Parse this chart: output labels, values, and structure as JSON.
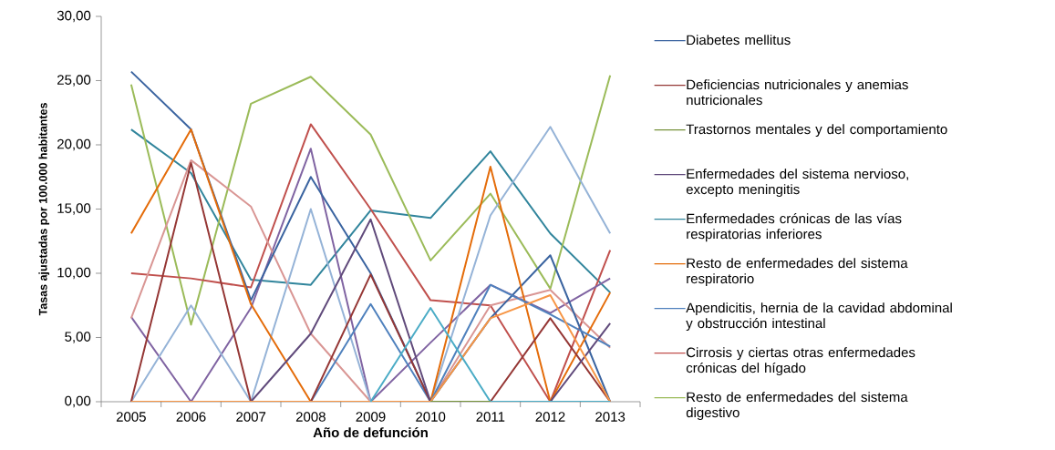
{
  "chart_data": {
    "type": "line",
    "xlabel": "Año de defunción",
    "ylabel": "Tasas ajustadas por 100.000 habitantes",
    "categories": [
      "2005",
      "2006",
      "2007",
      "2008",
      "2009",
      "2010",
      "2011",
      "2012",
      "2013"
    ],
    "ylim": [
      0,
      30
    ],
    "yticks": [
      {
        "value": 0,
        "label": "0,00"
      },
      {
        "value": 5,
        "label": "5,00"
      },
      {
        "value": 10,
        "label": "10,00"
      },
      {
        "value": 15,
        "label": "15,00"
      },
      {
        "value": 20,
        "label": "20,00"
      },
      {
        "value": 25,
        "label": "25,00"
      },
      {
        "value": 30,
        "label": "30,00"
      }
    ],
    "legend": "right",
    "grid": false,
    "series": [
      {
        "color": "#8064a2",
        "values": [
          6.6,
          0,
          7.3,
          19.7,
          0,
          4.6,
          9.1,
          6.9,
          9.6
        ]
      },
      {
        "color": "#4bacc6",
        "values": [
          null,
          null,
          null,
          null,
          0,
          7.3,
          0,
          0,
          0
        ]
      },
      {
        "color": "#f79646",
        "values": [
          0,
          0,
          0,
          0,
          0,
          0,
          6.5,
          8.3,
          0
        ]
      },
      {
        "color": "#95b3d7",
        "values": [
          0,
          7.5,
          0,
          15.0,
          0,
          0,
          14.5,
          21.4,
          13.1
        ]
      },
      {
        "color": "#d99694",
        "values": [
          6.5,
          18.8,
          15.2,
          5.3,
          0,
          0,
          7.5,
          8.7,
          4.2
        ]
      },
      {
        "name": "Diabetes mellitus",
        "color": "#3b64a0",
        "values": [
          25.7,
          21.2,
          7.9,
          17.5,
          10.0,
          0,
          6.5,
          11.4,
          0
        ]
      },
      {
        "name": "Deficiencias nutricionales y anemias nutricionales",
        "color": "#953735",
        "values": [
          0,
          18.6,
          0,
          0,
          9.9,
          0,
          0,
          6.5,
          0
        ]
      },
      {
        "name": "Trastornos mentales y del comportamiento",
        "color": "#77933c",
        "values": [
          null,
          null,
          null,
          null,
          null,
          0,
          0,
          null,
          null
        ]
      },
      {
        "name": "Enfermedades del sistema nervioso, excepto meningitis",
        "color": "#604a7b",
        "values": [
          0,
          0,
          0,
          5.3,
          14.2,
          0,
          0,
          0,
          6.1
        ]
      },
      {
        "name": "Enfermedades crónicas de las vías respiratorias inferiores",
        "color": "#31859c",
        "values": [
          21.2,
          17.8,
          9.5,
          9.1,
          14.9,
          14.3,
          19.5,
          13.1,
          8.5
        ]
      },
      {
        "name": "Resto de enfermedades del sistema respiratorio",
        "color": "#e46c0a",
        "values": [
          13.1,
          21.2,
          7.6,
          0,
          0,
          0,
          18.3,
          0,
          8.5
        ]
      },
      {
        "name": "Apendicitis, hernia de la cavidad abdominal y obstrucción intestinal",
        "color": "#4f81bd",
        "values": [
          0,
          0,
          0,
          0,
          7.6,
          0,
          9.1,
          6.8,
          4.3
        ]
      },
      {
        "name": "Cirrosis y ciertas otras enfermedades crónicas del hígado",
        "color": "#c0504d",
        "values": [
          10.0,
          9.6,
          8.9,
          21.6,
          15.0,
          7.9,
          7.5,
          0,
          11.8
        ]
      },
      {
        "name": "Resto de enfermedades del sistema digestivo",
        "color": "#9bbb59",
        "values": [
          24.7,
          6.0,
          23.2,
          25.3,
          20.8,
          11.0,
          16.2,
          8.8,
          25.4
        ]
      }
    ]
  }
}
